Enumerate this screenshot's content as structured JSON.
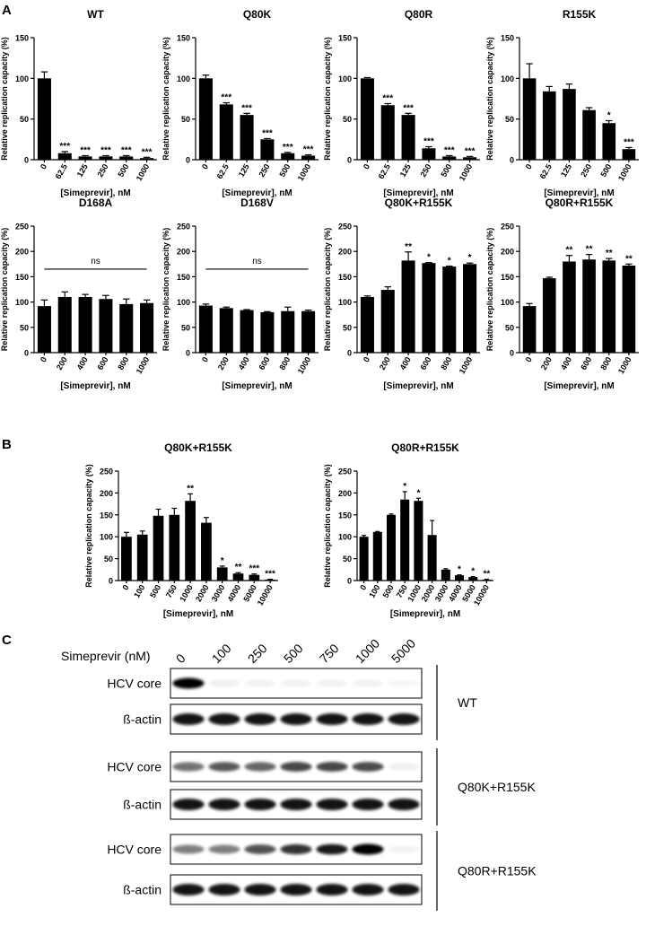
{
  "panel_labels": [
    "A",
    "B",
    "C"
  ],
  "chart_data": [
    {
      "type": "bar",
      "title": "WT",
      "x_label": "[Simeprevir], nM",
      "y_label": "Relative replication capacity (%)",
      "categories": [
        "0",
        "62.5",
        "125",
        "250",
        "500",
        "1000"
      ],
      "values": [
        100,
        8,
        4,
        4,
        4,
        2
      ],
      "errors": [
        8,
        2,
        1,
        1,
        1,
        1
      ],
      "significance": [
        null,
        "***",
        "***",
        "***",
        "***",
        "***"
      ],
      "color": "#000000",
      "ylim": [
        0,
        150
      ],
      "yticks": [
        0,
        50,
        100,
        150
      ]
    },
    {
      "type": "bar",
      "title": "Q80K",
      "x_label": "[Simeprevir], nM",
      "y_label": "Relative replication capacity (%)",
      "categories": [
        "0",
        "62.5",
        "125",
        "250",
        "500",
        "1000"
      ],
      "values": [
        100,
        68,
        55,
        25,
        8,
        5
      ],
      "errors": [
        4,
        2,
        2,
        1,
        1,
        1
      ],
      "significance": [
        null,
        "***",
        "***",
        "***",
        "***",
        "***"
      ],
      "color": "#000000",
      "ylim": [
        0,
        150
      ],
      "yticks": [
        0,
        50,
        100,
        150
      ]
    },
    {
      "type": "bar",
      "title": "Q80R",
      "x_label": "[Simeprevir], nM",
      "y_label": "Relative replication capacity (%)",
      "categories": [
        "0",
        "62.5",
        "125",
        "250",
        "500",
        "1000"
      ],
      "values": [
        100,
        67,
        55,
        14,
        4,
        3
      ],
      "errors": [
        1,
        2,
        2,
        2,
        1,
        1
      ],
      "significance": [
        null,
        "***",
        "***",
        "***",
        "***",
        "***"
      ],
      "color": "#000000",
      "ylim": [
        0,
        150
      ],
      "yticks": [
        0,
        50,
        100,
        150
      ]
    },
    {
      "type": "bar",
      "title": "R155K",
      "x_label": "[Simeprevir], nM",
      "y_label": "Relative replication capacity (%)",
      "categories": [
        "0",
        "62.5",
        "125",
        "250",
        "500",
        "1000"
      ],
      "values": [
        100,
        84,
        87,
        61,
        45,
        13
      ],
      "errors": [
        18,
        6,
        6,
        3,
        3,
        2
      ],
      "significance": [
        null,
        null,
        null,
        null,
        "*",
        "***"
      ],
      "color": "#000000",
      "ylim": [
        0,
        150
      ],
      "yticks": [
        0,
        50,
        100,
        150
      ]
    },
    {
      "type": "bar",
      "title": "D168A",
      "x_label": "[Simeprevir], nM",
      "y_label": "Relative replication capacity (%)",
      "categories": [
        "0",
        "200",
        "400",
        "600",
        "800",
        "1000"
      ],
      "values": [
        92,
        110,
        110,
        106,
        96,
        98
      ],
      "errors": [
        12,
        10,
        5,
        7,
        10,
        6
      ],
      "annotation": "ns",
      "color": "#000000",
      "ylim": [
        0,
        250
      ],
      "yticks": [
        0,
        50,
        100,
        150,
        200,
        250
      ]
    },
    {
      "type": "bar",
      "title": "D168V",
      "x_label": "[Simeprevir], nM",
      "y_label": "Relative replication capacity (%)",
      "categories": [
        "0",
        "200",
        "400",
        "600",
        "800",
        "1000"
      ],
      "values": [
        93,
        88,
        84,
        80,
        82,
        82
      ],
      "errors": [
        3,
        2,
        1,
        1,
        8,
        2
      ],
      "annotation": "ns",
      "color": "#000000",
      "ylim": [
        0,
        250
      ],
      "yticks": [
        0,
        50,
        100,
        150,
        200,
        250
      ]
    },
    {
      "type": "bar",
      "title": "Q80K+R155K",
      "x_label": "[Simeprevir], nM",
      "y_label": "Relative replication capacity (%)",
      "categories": [
        "0",
        "200",
        "400",
        "600",
        "800",
        "1000"
      ],
      "values": [
        110,
        124,
        182,
        177,
        170,
        175
      ],
      "errors": [
        2,
        6,
        17,
        1,
        1,
        2
      ],
      "significance": [
        null,
        null,
        "**",
        "*",
        "*",
        "*"
      ],
      "color": "#000000",
      "ylim": [
        0,
        250
      ],
      "yticks": [
        0,
        50,
        100,
        150,
        200,
        250
      ]
    },
    {
      "type": "bar",
      "title": "Q80R+R155K",
      "x_label": "[Simeprevir], nM",
      "y_label": "Relative replication capacity (%)",
      "categories": [
        "0",
        "200",
        "400",
        "600",
        "800",
        "1000"
      ],
      "values": [
        92,
        147,
        180,
        184,
        182,
        172
      ],
      "errors": [
        5,
        2,
        12,
        10,
        4,
        3
      ],
      "significance": [
        null,
        null,
        "**",
        "**",
        "**",
        "**"
      ],
      "color": "#000000",
      "ylim": [
        0,
        250
      ],
      "yticks": [
        0,
        50,
        100,
        150,
        200,
        250
      ]
    },
    {
      "type": "bar",
      "title": "Q80K+R155K",
      "x_label": "[Simeprevir], nM",
      "y_label": "Relative replication capacity (%)",
      "categories": [
        "0",
        "100",
        "500",
        "750",
        "1000",
        "2000",
        "3000",
        "4000",
        "5000",
        "10000"
      ],
      "values": [
        100,
        105,
        148,
        150,
        182,
        132,
        30,
        16,
        13,
        2
      ],
      "errors": [
        10,
        8,
        15,
        15,
        16,
        12,
        3,
        2,
        2,
        1
      ],
      "significance": [
        null,
        null,
        null,
        null,
        "**",
        null,
        "*",
        "**",
        "***",
        "***"
      ],
      "color": "#000000",
      "ylim": [
        0,
        250
      ],
      "yticks": [
        0,
        50,
        100,
        150,
        200,
        250
      ]
    },
    {
      "type": "bar",
      "title": "Q80R+R155K",
      "x_label": "[Simeprevir], nM",
      "y_label": "Relative replication capacity (%)",
      "categories": [
        "0",
        "100",
        "500",
        "750",
        "1000",
        "2000",
        "3000",
        "4000",
        "5000",
        "10000"
      ],
      "values": [
        100,
        111,
        150,
        185,
        182,
        104,
        25,
        12,
        8,
        2
      ],
      "errors": [
        3,
        1,
        2,
        18,
        6,
        33,
        2,
        1,
        1,
        1
      ],
      "significance": [
        null,
        null,
        null,
        "*",
        "*",
        null,
        null,
        "*",
        "*",
        "**"
      ],
      "color": "#000000",
      "ylim": [
        0,
        250
      ],
      "yticks": [
        0,
        50,
        100,
        150,
        200,
        250
      ]
    }
  ],
  "blot": {
    "axis_label": "Simeprevir (nM)",
    "concentrations": [
      0,
      100,
      250,
      500,
      750,
      1000,
      5000
    ],
    "groups": [
      {
        "label": "WT",
        "rows": [
          "HCV core",
          "ß-actin"
        ]
      },
      {
        "label": "Q80K+R155K",
        "rows": [
          "HCV core",
          "ß-actin"
        ]
      },
      {
        "label": "Q80R+R155K",
        "rows": [
          "HCV core",
          "ß-actin"
        ]
      }
    ]
  }
}
